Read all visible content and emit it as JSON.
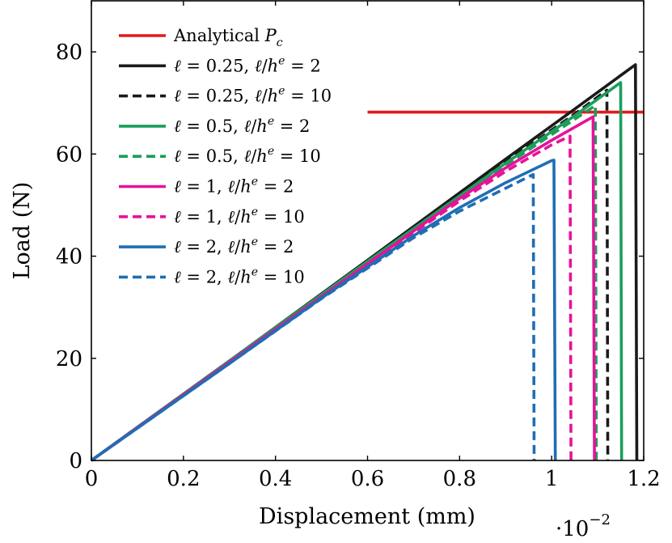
{
  "chart_data": {
    "type": "line",
    "xlabel": "Displacement (mm)",
    "ylabel": "Load (N)",
    "x_multiplier": "·10",
    "x_multiplier_exponent": "−2",
    "xlim": [
      0,
      1.2
    ],
    "ylim": [
      0,
      90
    ],
    "x_ticks": [
      0,
      0.2,
      0.4,
      0.6,
      0.8,
      1,
      1.2
    ],
    "x_tick_labels": [
      "0",
      "0.2",
      "0.4",
      "0.6",
      "0.8",
      "1",
      "1.2"
    ],
    "y_ticks": [
      0,
      20,
      40,
      60,
      80
    ],
    "y_tick_labels": [
      "0",
      "20",
      "40",
      "60",
      "80"
    ],
    "grid": false,
    "legend_position": "top-left",
    "series": [
      {
        "name": "Analytical P_c",
        "legend": [
          {
            "t": "Analytical "
          },
          {
            "t": "P",
            "i": true
          },
          {
            "t": "c",
            "i": true,
            "sub": true
          }
        ],
        "color": "#e41a1c",
        "style": "solid",
        "points": [
          [
            0.6,
            68.2
          ],
          [
            1.2,
            68.2
          ]
        ]
      },
      {
        "name": "ℓ = 0.25, ℓ/h^e = 2",
        "legend": [
          {
            "t": "ℓ",
            "i": true
          },
          {
            "t": " = 0.25, "
          },
          {
            "t": "ℓ",
            "i": true
          },
          {
            "t": "/"
          },
          {
            "t": "h",
            "i": true
          },
          {
            "t": "e",
            "i": true,
            "sup": true
          },
          {
            "t": " = 2"
          }
        ],
        "color": "#1a1a1a",
        "style": "solid",
        "points": [
          [
            0,
            0
          ],
          [
            0.3,
            19.5
          ],
          [
            0.6,
            39.2
          ],
          [
            0.9,
            59.0
          ],
          [
            1.05,
            68.8
          ],
          [
            1.182,
            77.5
          ],
          [
            1.185,
            0
          ]
        ]
      },
      {
        "name": "ℓ = 0.25, ℓ/h^e = 10",
        "legend": [
          {
            "t": "ℓ",
            "i": true
          },
          {
            "t": " = 0.25, "
          },
          {
            "t": "ℓ",
            "i": true
          },
          {
            "t": "/"
          },
          {
            "t": "h",
            "i": true
          },
          {
            "t": "e",
            "i": true,
            "sup": true
          },
          {
            "t": " = 10"
          }
        ],
        "color": "#1a1a1a",
        "style": "dashed",
        "points": [
          [
            0,
            0
          ],
          [
            0.3,
            19.5
          ],
          [
            0.6,
            39.0
          ],
          [
            0.9,
            58.5
          ],
          [
            1.05,
            67.8
          ],
          [
            1.12,
            72.5
          ],
          [
            1.122,
            0
          ]
        ]
      },
      {
        "name": "ℓ = 0.5, ℓ/h^e = 2",
        "legend": [
          {
            "t": "ℓ",
            "i": true
          },
          {
            "t": " = 0.5, "
          },
          {
            "t": "ℓ",
            "i": true
          },
          {
            "t": "/"
          },
          {
            "t": "h",
            "i": true
          },
          {
            "t": "e",
            "i": true,
            "sup": true
          },
          {
            "t": " = 2"
          }
        ],
        "color": "#1b9e5a",
        "style": "solid",
        "points": [
          [
            0,
            0
          ],
          [
            0.3,
            19.5
          ],
          [
            0.6,
            39.0
          ],
          [
            0.9,
            58.2
          ],
          [
            1.05,
            67.5
          ],
          [
            1.15,
            74.0
          ],
          [
            1.152,
            0
          ]
        ]
      },
      {
        "name": "ℓ = 0.5, ℓ/h^e = 10",
        "legend": [
          {
            "t": "ℓ",
            "i": true
          },
          {
            "t": " = 0.5, "
          },
          {
            "t": "ℓ",
            "i": true
          },
          {
            "t": "/"
          },
          {
            "t": "h",
            "i": true
          },
          {
            "t": "e",
            "i": true,
            "sup": true
          },
          {
            "t": " = 10"
          }
        ],
        "color": "#1b9e5a",
        "style": "dashed",
        "points": [
          [
            0,
            0
          ],
          [
            0.3,
            19.5
          ],
          [
            0.6,
            38.8
          ],
          [
            0.9,
            57.8
          ],
          [
            1.05,
            66.8
          ],
          [
            1.095,
            69.5
          ],
          [
            1.097,
            0
          ]
        ]
      },
      {
        "name": "ℓ = 1, ℓ/h^e = 2",
        "legend": [
          {
            "t": "ℓ",
            "i": true
          },
          {
            "t": " = 1, "
          },
          {
            "t": "ℓ",
            "i": true
          },
          {
            "t": "/"
          },
          {
            "t": "h",
            "i": true
          },
          {
            "t": "e",
            "i": true,
            "sup": true
          },
          {
            "t": " = 2"
          }
        ],
        "color": "#e6129a",
        "style": "solid",
        "points": [
          [
            0,
            0
          ],
          [
            0.3,
            19.3
          ],
          [
            0.6,
            38.5
          ],
          [
            0.8,
            51.3
          ],
          [
            0.9,
            57.3
          ],
          [
            1.0,
            62.7
          ],
          [
            1.09,
            67.3
          ],
          [
            1.093,
            0
          ]
        ]
      },
      {
        "name": "ℓ = 1, ℓ/h^e = 10",
        "legend": [
          {
            "t": "ℓ",
            "i": true
          },
          {
            "t": " = 1, "
          },
          {
            "t": "ℓ",
            "i": true
          },
          {
            "t": "/"
          },
          {
            "t": "h",
            "i": true
          },
          {
            "t": "e",
            "i": true,
            "sup": true
          },
          {
            "t": " = 10"
          }
        ],
        "color": "#e6129a",
        "style": "dashed",
        "points": [
          [
            0,
            0
          ],
          [
            0.3,
            19.3
          ],
          [
            0.6,
            38.3
          ],
          [
            0.8,
            50.8
          ],
          [
            0.9,
            56.6
          ],
          [
            1.0,
            61.8
          ],
          [
            1.04,
            63.5
          ],
          [
            1.042,
            0
          ]
        ]
      },
      {
        "name": "ℓ = 2, ℓ/h^e = 2",
        "legend": [
          {
            "t": "ℓ",
            "i": true
          },
          {
            "t": " = 2, "
          },
          {
            "t": "ℓ",
            "i": true
          },
          {
            "t": "/"
          },
          {
            "t": "h",
            "i": true
          },
          {
            "t": "e",
            "i": true,
            "sup": true
          },
          {
            "t": " = 2"
          }
        ],
        "color": "#1f6eb4",
        "style": "solid",
        "points": [
          [
            0,
            0
          ],
          [
            0.3,
            19.0
          ],
          [
            0.5,
            31.8
          ],
          [
            0.7,
            44.0
          ],
          [
            0.8,
            49.5
          ],
          [
            0.9,
            54.4
          ],
          [
            1.0,
            58.7
          ],
          [
            1.005,
            58.8
          ],
          [
            1.008,
            0
          ]
        ]
      },
      {
        "name": "ℓ = 2, ℓ/h^e = 10",
        "legend": [
          {
            "t": "ℓ",
            "i": true
          },
          {
            "t": " = 2, "
          },
          {
            "t": "ℓ",
            "i": true
          },
          {
            "t": "/"
          },
          {
            "t": "h",
            "i": true
          },
          {
            "t": "e",
            "i": true,
            "sup": true
          },
          {
            "t": " = 10"
          }
        ],
        "color": "#1f6eb4",
        "style": "dashed",
        "points": [
          [
            0,
            0
          ],
          [
            0.3,
            19.0
          ],
          [
            0.5,
            31.7
          ],
          [
            0.7,
            43.6
          ],
          [
            0.8,
            48.8
          ],
          [
            0.9,
            53.3
          ],
          [
            0.96,
            56.0
          ],
          [
            0.962,
            0
          ]
        ]
      }
    ]
  }
}
